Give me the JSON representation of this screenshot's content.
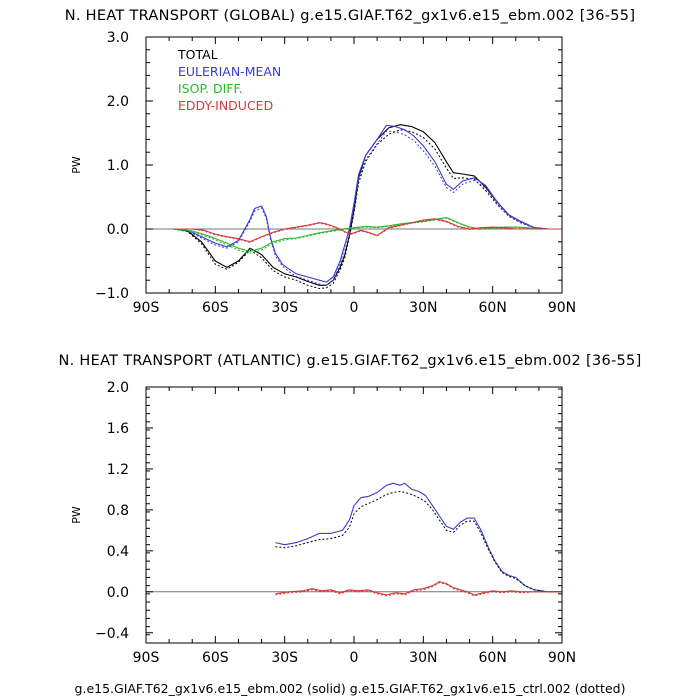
{
  "chart_data": [
    {
      "type": "line",
      "title": "N. HEAT TRANSPORT (GLOBAL) g.e15.GIAF.T62_gx1v6.e15_ebm.002 [36-55]",
      "ylabel": "PW",
      "xlabel": "",
      "xlim": [
        -90,
        90
      ],
      "ylim": [
        -1.0,
        3.0
      ],
      "xticks": [
        -90,
        -60,
        -30,
        0,
        30,
        60,
        90
      ],
      "xtick_labels": [
        "90S",
        "60S",
        "30S",
        "0",
        "30N",
        "60N",
        "90N"
      ],
      "yticks": [
        -1.0,
        0.0,
        1.0,
        2.0,
        3.0
      ],
      "ytick_labels": [
        "−1.0",
        "0.0",
        "1.0",
        "2.0",
        "3.0"
      ],
      "legend": [
        "TOTAL",
        "EULERIAN-MEAN",
        "ISOP. DIFF.",
        "EDDY-INDUCED"
      ],
      "series": [
        {
          "name": "TOTAL",
          "style": "solid",
          "color": "#000000",
          "x": [
            -78,
            -72,
            -66,
            -60,
            -55,
            -50,
            -45,
            -40,
            -35,
            -30,
            -25,
            -20,
            -15,
            -12,
            -9,
            -6,
            -4,
            -2,
            0,
            2,
            5,
            10,
            15,
            20,
            25,
            30,
            35,
            40,
            43,
            47,
            52,
            57,
            62,
            67,
            72,
            78,
            84,
            90
          ],
          "y": [
            0,
            -0.03,
            -0.2,
            -0.5,
            -0.6,
            -0.5,
            -0.3,
            -0.4,
            -0.6,
            -0.7,
            -0.75,
            -0.82,
            -0.88,
            -0.88,
            -0.8,
            -0.6,
            -0.4,
            -0.1,
            0.3,
            0.8,
            1.15,
            1.4,
            1.58,
            1.63,
            1.6,
            1.52,
            1.35,
            1.05,
            0.88,
            0.86,
            0.83,
            0.65,
            0.42,
            0.22,
            0.12,
            0.02,
            0,
            0
          ]
        },
        {
          "name": "TOTAL (ctrl)",
          "style": "dotted",
          "color": "#000000",
          "x": [
            -78,
            -72,
            -66,
            -60,
            -55,
            -50,
            -45,
            -40,
            -35,
            -30,
            -25,
            -20,
            -15,
            -12,
            -9,
            -6,
            -4,
            -2,
            0,
            2,
            5,
            10,
            15,
            20,
            25,
            30,
            35,
            40,
            43,
            47,
            52,
            57,
            62,
            67,
            72,
            78,
            84,
            90
          ],
          "y": [
            0,
            -0.04,
            -0.23,
            -0.55,
            -0.63,
            -0.52,
            -0.33,
            -0.45,
            -0.65,
            -0.75,
            -0.8,
            -0.88,
            -0.93,
            -0.92,
            -0.85,
            -0.64,
            -0.45,
            -0.12,
            0.25,
            0.72,
            1.05,
            1.32,
            1.48,
            1.55,
            1.52,
            1.43,
            1.25,
            0.95,
            0.79,
            0.8,
            0.78,
            0.6,
            0.38,
            0.2,
            0.1,
            0.02,
            0,
            0
          ]
        },
        {
          "name": "EULERIAN-MEAN",
          "style": "solid",
          "color": "#3c3cd2",
          "x": [
            -78,
            -72,
            -66,
            -60,
            -55,
            -50,
            -48,
            -45,
            -43,
            -40,
            -38,
            -36,
            -34,
            -31,
            -28,
            -25,
            -20,
            -15,
            -12,
            -9,
            -6,
            -4,
            -2,
            0,
            2,
            5,
            10,
            14,
            18,
            22,
            26,
            30,
            35,
            40,
            43,
            47,
            52,
            57,
            62,
            67,
            72,
            78,
            84,
            90
          ],
          "y": [
            0,
            -0.02,
            -0.12,
            -0.22,
            -0.28,
            -0.18,
            -0.05,
            0.15,
            0.32,
            0.36,
            0.2,
            -0.15,
            -0.38,
            -0.55,
            -0.63,
            -0.7,
            -0.75,
            -0.8,
            -0.83,
            -0.75,
            -0.5,
            -0.25,
            0,
            0.4,
            0.85,
            1.15,
            1.4,
            1.62,
            1.6,
            1.55,
            1.45,
            1.3,
            1.05,
            0.7,
            0.62,
            0.75,
            0.8,
            0.68,
            0.42,
            0.22,
            0.12,
            0.02,
            0,
            0
          ]
        },
        {
          "name": "EULERIAN-MEAN (ctrl)",
          "style": "dotted",
          "color": "#3c3cd2",
          "x": [
            -78,
            -72,
            -66,
            -60,
            -55,
            -50,
            -48,
            -45,
            -43,
            -40,
            -38,
            -36,
            -34,
            -31,
            -28,
            -25,
            -20,
            -15,
            -12,
            -9,
            -6,
            -4,
            -2,
            0,
            2,
            5,
            10,
            14,
            18,
            22,
            26,
            30,
            35,
            40,
            43,
            47,
            52,
            57,
            62,
            67,
            72,
            78,
            84,
            90
          ],
          "y": [
            0,
            -0.03,
            -0.14,
            -0.25,
            -0.3,
            -0.2,
            -0.07,
            0.12,
            0.28,
            0.33,
            0.17,
            -0.18,
            -0.42,
            -0.58,
            -0.67,
            -0.74,
            -0.8,
            -0.86,
            -0.88,
            -0.8,
            -0.55,
            -0.28,
            -0.02,
            0.35,
            0.78,
            1.08,
            1.33,
            1.53,
            1.52,
            1.47,
            1.38,
            1.22,
            0.98,
            0.65,
            0.57,
            0.7,
            0.76,
            0.64,
            0.39,
            0.2,
            0.1,
            0.02,
            0,
            0
          ]
        },
        {
          "name": "ISOP. DIFF.",
          "style": "solid",
          "color": "#2ab82a",
          "x": [
            -78,
            -70,
            -62,
            -55,
            -50,
            -45,
            -40,
            -35,
            -30,
            -25,
            -20,
            -15,
            -10,
            -5,
            0,
            5,
            10,
            15,
            20,
            25,
            30,
            35,
            40,
            45,
            50,
            55,
            60,
            65,
            70,
            75,
            80,
            90
          ],
          "y": [
            0,
            -0.03,
            -0.12,
            -0.22,
            -0.3,
            -0.35,
            -0.3,
            -0.2,
            -0.15,
            -0.14,
            -0.1,
            -0.06,
            -0.03,
            0,
            0.02,
            0.04,
            0.03,
            0.05,
            0.08,
            0.1,
            0.12,
            0.15,
            0.18,
            0.1,
            0.03,
            0,
            0.02,
            0.03,
            0.03,
            0.02,
            0,
            0
          ]
        },
        {
          "name": "ISOP. DIFF. (ctrl)",
          "style": "dotted",
          "color": "#2ab82a",
          "x": [
            -78,
            -70,
            -62,
            -55,
            -50,
            -45,
            -40,
            -35,
            -30,
            -25,
            -20,
            -15,
            -10,
            -5,
            0,
            5,
            10,
            15,
            20,
            25,
            30,
            35,
            40,
            45,
            50,
            55,
            60,
            65,
            70,
            75,
            80,
            90
          ],
          "y": [
            0,
            -0.04,
            -0.14,
            -0.25,
            -0.33,
            -0.38,
            -0.33,
            -0.22,
            -0.17,
            -0.15,
            -0.11,
            -0.07,
            -0.04,
            -0.01,
            0.01,
            0.03,
            0.02,
            0.04,
            0.07,
            0.09,
            0.11,
            0.14,
            0.17,
            0.09,
            0.02,
            -0.01,
            0.01,
            0.02,
            0.02,
            0.01,
            0,
            0
          ]
        },
        {
          "name": "EDDY-INDUCED",
          "style": "solid",
          "color": "#d23c3c",
          "x": [
            -78,
            -70,
            -65,
            -60,
            -55,
            -50,
            -45,
            -40,
            -35,
            -30,
            -25,
            -20,
            -15,
            -12,
            -8,
            -5,
            -2,
            0,
            3,
            6,
            10,
            15,
            20,
            25,
            30,
            35,
            40,
            45,
            50,
            55,
            60,
            65,
            70,
            75,
            80,
            90
          ],
          "y": [
            0,
            0,
            -0.02,
            -0.08,
            -0.12,
            -0.15,
            -0.2,
            -0.12,
            -0.05,
            0,
            0.03,
            0.06,
            0.1,
            0.08,
            0.03,
            -0.02,
            -0.08,
            -0.06,
            -0.02,
            -0.05,
            -0.1,
            0.02,
            0.06,
            0.1,
            0.14,
            0.16,
            0.12,
            0.04,
            0,
            0.02,
            0.03,
            0.02,
            0,
            0,
            0,
            0
          ]
        },
        {
          "name": "EDDY-INDUCED (ctrl)",
          "style": "dotted",
          "color": "#d23c3c",
          "x": [
            -78,
            -70,
            -65,
            -60,
            -55,
            -50,
            -45,
            -40,
            -35,
            -30,
            -25,
            -20,
            -15,
            -12,
            -8,
            -5,
            -2,
            0,
            3,
            6,
            10,
            15,
            20,
            25,
            30,
            35,
            40,
            45,
            50,
            55,
            60,
            65,
            70,
            75,
            80,
            90
          ],
          "y": [
            0,
            0,
            -0.03,
            -0.09,
            -0.13,
            -0.16,
            -0.21,
            -0.13,
            -0.06,
            -0.01,
            0.02,
            0.05,
            0.09,
            0.07,
            0.02,
            -0.03,
            -0.09,
            -0.07,
            -0.03,
            -0.06,
            -0.11,
            0.01,
            0.05,
            0.09,
            0.13,
            0.15,
            0.11,
            0.03,
            -0.01,
            0.01,
            0.02,
            0.01,
            0,
            0,
            0,
            0
          ]
        }
      ]
    },
    {
      "type": "line",
      "title": "N. HEAT TRANSPORT (ATLANTIC) g.e15.GIAF.T62_gx1v6.e15_ebm.002 [36-55]",
      "ylabel": "PW",
      "xlabel": "",
      "xlim": [
        -90,
        90
      ],
      "ylim": [
        -0.5,
        2.0
      ],
      "xticks": [
        -90,
        -60,
        -30,
        0,
        30,
        60,
        90
      ],
      "xtick_labels": [
        "90S",
        "60S",
        "30S",
        "0",
        "30N",
        "60N",
        "90N"
      ],
      "yticks": [
        -0.4,
        0.0,
        0.4,
        0.8,
        1.2,
        1.6,
        2.0
      ],
      "ytick_labels": [
        "−0.4",
        "0.0",
        "0.4",
        "0.8",
        "1.2",
        "1.6",
        "2.0"
      ],
      "series": [
        {
          "name": "EULERIAN-MEAN",
          "style": "solid",
          "color": "#3c3cd2",
          "x": [
            -34,
            -30,
            -25,
            -20,
            -15,
            -10,
            -5,
            -2,
            0,
            3,
            6,
            10,
            14,
            17,
            20,
            22,
            25,
            28,
            31,
            34,
            37,
            40,
            43,
            46,
            49,
            52,
            55,
            58,
            61,
            64,
            67,
            70,
            74,
            78,
            84,
            90
          ],
          "y": [
            0.48,
            0.46,
            0.48,
            0.52,
            0.57,
            0.57,
            0.6,
            0.7,
            0.84,
            0.92,
            0.93,
            0.97,
            1.04,
            1.06,
            1.04,
            1.06,
            1.0,
            0.98,
            0.94,
            0.84,
            0.74,
            0.64,
            0.61,
            0.68,
            0.72,
            0.72,
            0.6,
            0.44,
            0.3,
            0.2,
            0.16,
            0.14,
            0.06,
            0.02,
            0,
            0
          ]
        },
        {
          "name": "EULERIAN-MEAN (ctrl)",
          "style": "dotted",
          "color": "#000000",
          "x": [
            -34,
            -30,
            -25,
            -20,
            -15,
            -10,
            -5,
            -2,
            0,
            3,
            6,
            10,
            14,
            17,
            20,
            22,
            25,
            28,
            31,
            34,
            37,
            40,
            43,
            46,
            49,
            52,
            55,
            58,
            61,
            64,
            67,
            70,
            74,
            78,
            84,
            90
          ],
          "y": [
            0.44,
            0.43,
            0.45,
            0.48,
            0.51,
            0.52,
            0.55,
            0.63,
            0.76,
            0.83,
            0.86,
            0.9,
            0.95,
            0.97,
            0.98,
            0.97,
            0.95,
            0.92,
            0.88,
            0.8,
            0.7,
            0.6,
            0.58,
            0.65,
            0.69,
            0.69,
            0.57,
            0.42,
            0.29,
            0.19,
            0.15,
            0.13,
            0.06,
            0.02,
            0,
            0
          ]
        },
        {
          "name": "EDDY-INDUCED",
          "style": "solid",
          "color": "#d23c3c",
          "x": [
            -34,
            -28,
            -22,
            -18,
            -14,
            -10,
            -6,
            -2,
            2,
            6,
            10,
            14,
            18,
            22,
            26,
            30,
            34,
            37,
            40,
            43,
            46,
            49,
            52,
            56,
            60,
            64,
            68,
            72,
            78,
            84,
            90
          ],
          "y": [
            -0.02,
            0,
            0.01,
            0.03,
            0.01,
            0.02,
            -0.01,
            0.02,
            0.01,
            0.02,
            -0.01,
            -0.03,
            -0.01,
            -0.02,
            0.02,
            0.03,
            0.06,
            0.1,
            0.08,
            0.04,
            0.02,
            0.0,
            -0.03,
            -0.01,
            0.01,
            0.0,
            0.01,
            0.0,
            0,
            0,
            0
          ]
        },
        {
          "name": "EDDY-INDUCED (ctrl)",
          "style": "dotted",
          "color": "#d23c3c",
          "x": [
            -34,
            -28,
            -22,
            -18,
            -14,
            -10,
            -6,
            -2,
            2,
            6,
            10,
            14,
            18,
            22,
            26,
            30,
            34,
            37,
            40,
            43,
            46,
            49,
            52,
            56,
            60,
            64,
            68,
            72,
            78,
            84,
            90
          ],
          "y": [
            -0.03,
            -0.01,
            0,
            0.02,
            0,
            0.01,
            -0.02,
            0.01,
            0,
            0.01,
            -0.02,
            -0.04,
            -0.02,
            -0.03,
            0.01,
            0.02,
            0.05,
            0.09,
            0.07,
            0.03,
            0.01,
            -0.01,
            -0.04,
            -0.02,
            0,
            -0.01,
            0,
            -0.01,
            0,
            0,
            0
          ]
        }
      ]
    }
  ],
  "caption": "g.e15.GIAF.T62_gx1v6.e15_ebm.002 (solid) g.e15.GIAF.T62_gx1v6.e15_ctrl.002 (dotted)",
  "colors": {
    "total": "#000000",
    "eulerian_mean": "#3c3cd2",
    "isop_diff": "#2ab82a",
    "eddy_induced": "#d23c3c",
    "axis": "#000000",
    "zero_line": "#777777"
  }
}
